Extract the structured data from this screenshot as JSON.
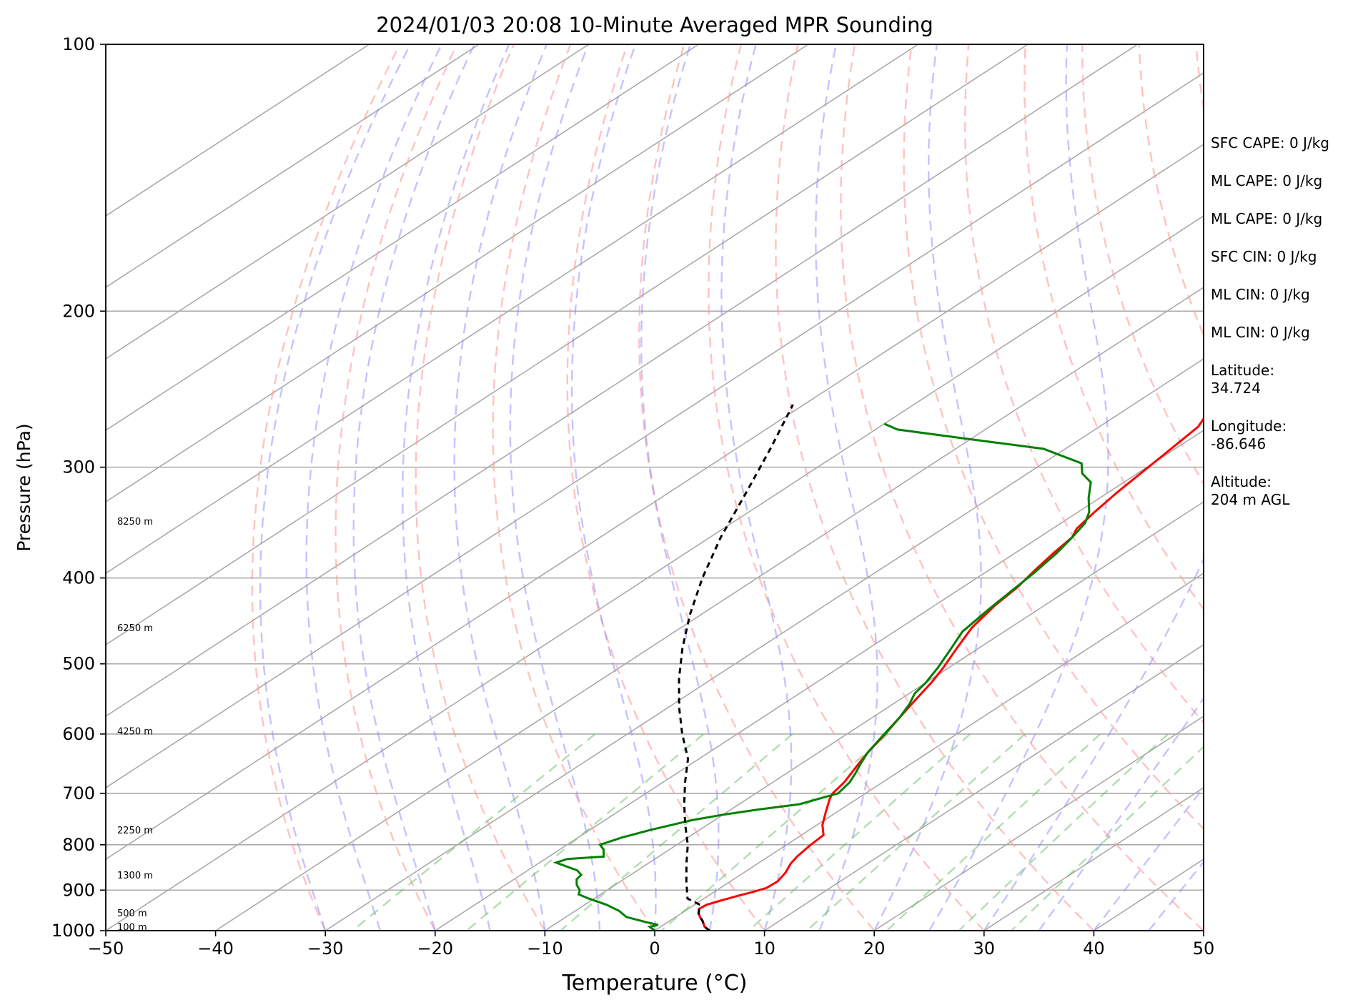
{
  "chart_data": {
    "type": "skew-t",
    "title": "2024/01/03 20:08 10-Minute Averaged MPR Sounding",
    "xlabel": "Temperature (°C)",
    "ylabel": "Pressure (hPa)",
    "xlim": [
      -50,
      50
    ],
    "ylim": [
      1000,
      100
    ],
    "x_ticks": [
      "−50",
      "−40",
      "−30",
      "−20",
      "−10",
      "0",
      "10",
      "20",
      "30",
      "40",
      "50"
    ],
    "y_ticks": [
      {
        "p": 100,
        "label": "100"
      },
      {
        "p": 200,
        "label": "200"
      },
      {
        "p": 300,
        "label": "300"
      },
      {
        "p": 400,
        "label": "400"
      },
      {
        "p": 500,
        "label": "500"
      },
      {
        "p": 600,
        "label": "600"
      },
      {
        "p": 700,
        "label": "700"
      },
      {
        "p": 800,
        "label": "800"
      },
      {
        "p": 900,
        "label": "900"
      },
      {
        "p": 1000,
        "label": "1000"
      }
    ],
    "log_pressure_axis": true,
    "grid": true,
    "height_labels": [
      {
        "p": 345,
        "label": "8250 m"
      },
      {
        "p": 455,
        "label": "6250 m"
      },
      {
        "p": 595,
        "label": "4250 m"
      },
      {
        "p": 770,
        "label": "2250 m"
      },
      {
        "p": 865,
        "label": "1300 m"
      },
      {
        "p": 955,
        "label": "500 m"
      },
      {
        "p": 990,
        "label": "100 m"
      }
    ],
    "series": [
      {
        "color": "#ff0000",
        "points": [
          [
            -22.5,
            257
          ],
          [
            -21,
            270
          ],
          [
            -20.3,
            288
          ],
          [
            -19.7,
            305
          ],
          [
            -19.2,
            320
          ],
          [
            -18.5,
            337
          ],
          [
            -17.8,
            352
          ],
          [
            -17,
            360
          ],
          [
            -16.5,
            375
          ],
          [
            -15.8,
            392
          ],
          [
            -15,
            410
          ],
          [
            -14.5,
            430
          ],
          [
            -13.5,
            455
          ],
          [
            -12,
            480
          ],
          [
            -10.5,
            505
          ],
          [
            -9.5,
            525
          ],
          [
            -8.5,
            550
          ],
          [
            -7.5,
            575
          ],
          [
            -6.5,
            600
          ],
          [
            -5.5,
            630
          ],
          [
            -4.5,
            655
          ],
          [
            -3.5,
            680
          ],
          [
            -3,
            700
          ],
          [
            -2.5,
            710
          ],
          [
            -1,
            735
          ],
          [
            0.5,
            760
          ],
          [
            2,
            780
          ],
          [
            2.2,
            800
          ],
          [
            2.6,
            825
          ],
          [
            3,
            840
          ],
          [
            3.8,
            860
          ],
          [
            4.3,
            880
          ],
          [
            4.2,
            895
          ],
          [
            3.5,
            905
          ],
          [
            2.8,
            912
          ],
          [
            1.8,
            925
          ],
          [
            1.1,
            935
          ],
          [
            1,
            945
          ],
          [
            1.5,
            955
          ],
          [
            2.2,
            965
          ],
          [
            3,
            975
          ],
          [
            4,
            990
          ],
          [
            5,
            1000
          ]
        ]
      },
      {
        "color": "#008000",
        "points": [
          [
            -50,
            268
          ],
          [
            -48,
            272
          ],
          [
            -40,
            279
          ],
          [
            -32,
            286
          ],
          [
            -26.5,
            297
          ],
          [
            -25,
            305
          ],
          [
            -23,
            312
          ],
          [
            -21,
            325
          ],
          [
            -19,
            337
          ],
          [
            -17.8,
            347
          ],
          [
            -17,
            360
          ],
          [
            -16.2,
            375
          ],
          [
            -15.5,
            395
          ],
          [
            -15,
            415
          ],
          [
            -14.5,
            435
          ],
          [
            -13.8,
            460
          ],
          [
            -12.5,
            480
          ],
          [
            -11,
            505
          ],
          [
            -10,
            525
          ],
          [
            -9.5,
            540
          ],
          [
            -8.5,
            555
          ],
          [
            -7.5,
            575
          ],
          [
            -6.6,
            600
          ],
          [
            -5.5,
            630
          ],
          [
            -4.5,
            650
          ],
          [
            -3.7,
            665
          ],
          [
            -3,
            680
          ],
          [
            -2.5,
            700
          ],
          [
            -4.5,
            720
          ],
          [
            -7.5,
            730
          ],
          [
            -10,
            740
          ],
          [
            -12,
            750
          ],
          [
            -14.5,
            770
          ],
          [
            -16,
            785
          ],
          [
            -17,
            800
          ],
          [
            -16,
            810
          ],
          [
            -15,
            825
          ],
          [
            -18,
            830
          ],
          [
            -18.5,
            838
          ],
          [
            -15.5,
            855
          ],
          [
            -14.5,
            865
          ],
          [
            -14.3,
            875
          ],
          [
            -13.5,
            888
          ],
          [
            -12.5,
            900
          ],
          [
            -12,
            910
          ],
          [
            -10.5,
            920
          ],
          [
            -8,
            935
          ],
          [
            -6,
            950
          ],
          [
            -4.5,
            965
          ],
          [
            -2,
            978
          ],
          [
            -0.5,
            985
          ],
          [
            -1,
            990
          ],
          [
            -0.5,
            995
          ],
          [
            0,
            1000
          ]
        ]
      },
      {
        "color": "#000000",
        "dash": "dashed",
        "points": [
          [
            5,
            1000
          ],
          [
            4,
            990
          ],
          [
            3,
            975
          ],
          [
            1.8,
            960
          ],
          [
            1,
            945
          ],
          [
            0.5,
            935
          ],
          [
            -1.5,
            920
          ],
          [
            -4,
            880
          ],
          [
            -6.5,
            840
          ],
          [
            -9,
            800
          ],
          [
            -12,
            760
          ],
          [
            -15,
            720
          ],
          [
            -18,
            680
          ],
          [
            -21,
            640
          ],
          [
            -25,
            600
          ],
          [
            -29,
            560
          ],
          [
            -33,
            520
          ],
          [
            -37,
            480
          ],
          [
            -41,
            440
          ],
          [
            -45,
            400
          ],
          [
            -49,
            360
          ],
          [
            -53,
            320
          ],
          [
            -57,
            285
          ],
          [
            -61,
            255
          ]
        ]
      }
    ]
  },
  "side_info": [
    "SFC CAPE: 0 J/kg",
    "ML CAPE: 0 J/kg",
    "ML CAPE: 0 J/kg",
    "SFC CIN: 0 J/kg",
    "ML CIN: 0 J/kg",
    "ML CIN: 0 J/kg",
    "Latitude:\n34.724",
    "Longitude:\n-86.646",
    "Altitude:\n204 m AGL"
  ]
}
